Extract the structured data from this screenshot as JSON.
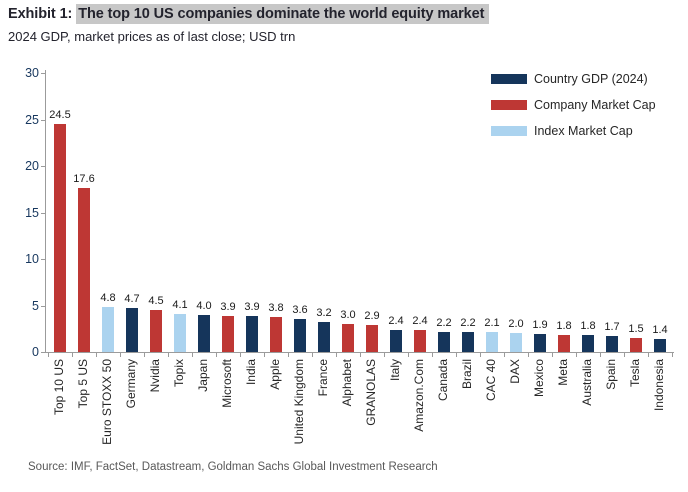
{
  "header": {
    "exhibit_label": "Exhibit 1: ",
    "title_highlight": "The top 10 US companies dominate the world equity market",
    "subtitle": "2024 GDP, market prices as of last close; USD trn"
  },
  "chart_data": {
    "type": "bar",
    "title": "Exhibit 1: The top 10 US companies dominate the world equity market",
    "subtitle": "2024 GDP, market prices as of last close; USD trn",
    "ylim": [
      0,
      30
    ],
    "yticks": [
      0,
      5,
      10,
      15,
      20,
      25,
      30
    ],
    "grid": false,
    "legend_position": "top-right",
    "value_labels": true,
    "x_label_rotation": 90,
    "legend": [
      {
        "series": "gdp",
        "label": "Country GDP (2024)"
      },
      {
        "series": "company",
        "label": "Company Market Cap"
      },
      {
        "series": "index",
        "label": "Index Market Cap"
      }
    ],
    "series_colors": {
      "gdp": "#15355B",
      "company": "#BE3734",
      "index": "#ABD3EF"
    },
    "bars": [
      {
        "label": "Top 10 US",
        "value": 24.5,
        "series": "company"
      },
      {
        "label": "Top 5 US",
        "value": 17.6,
        "series": "company"
      },
      {
        "label": "Euro STOXX 50",
        "value": 4.8,
        "series": "index"
      },
      {
        "label": "Germany",
        "value": 4.7,
        "series": "gdp"
      },
      {
        "label": "Nvidia",
        "value": 4.5,
        "series": "company"
      },
      {
        "label": "Topix",
        "value": 4.1,
        "series": "index"
      },
      {
        "label": "Japan",
        "value": 4.0,
        "series": "gdp"
      },
      {
        "label": "Microsoft",
        "value": 3.9,
        "series": "company"
      },
      {
        "label": "India",
        "value": 3.9,
        "series": "gdp"
      },
      {
        "label": "Apple",
        "value": 3.8,
        "series": "company"
      },
      {
        "label": "United Kingdom",
        "value": 3.6,
        "series": "gdp"
      },
      {
        "label": "France",
        "value": 3.2,
        "series": "gdp"
      },
      {
        "label": "Alphabet",
        "value": 3.0,
        "series": "company"
      },
      {
        "label": "GRANOLAS",
        "value": 2.9,
        "series": "company"
      },
      {
        "label": "Italy",
        "value": 2.4,
        "series": "gdp"
      },
      {
        "label": "Amazon.Com",
        "value": 2.4,
        "series": "company"
      },
      {
        "label": "Canada",
        "value": 2.2,
        "series": "gdp"
      },
      {
        "label": "Brazil",
        "value": 2.2,
        "series": "gdp"
      },
      {
        "label": "CAC 40",
        "value": 2.1,
        "series": "index"
      },
      {
        "label": "DAX",
        "value": 2.0,
        "series": "index"
      },
      {
        "label": "Mexico",
        "value": 1.9,
        "series": "gdp"
      },
      {
        "label": "Meta",
        "value": 1.8,
        "series": "company"
      },
      {
        "label": "Australia",
        "value": 1.8,
        "series": "gdp"
      },
      {
        "label": "Spain",
        "value": 1.7,
        "series": "gdp"
      },
      {
        "label": "Tesla",
        "value": 1.5,
        "series": "company"
      },
      {
        "label": "Indonesia",
        "value": 1.4,
        "series": "gdp"
      }
    ]
  },
  "footer": {
    "source": "Source: IMF, FactSet, Datastream, Goldman Sachs Global Investment Research"
  },
  "colors": {
    "title_highlight_bg": "#C7C7C7",
    "axis_line": "#9B9B9B",
    "y_tick_label": "#17375E",
    "value_label": "#1A1A1A",
    "source_text": "#595959"
  }
}
